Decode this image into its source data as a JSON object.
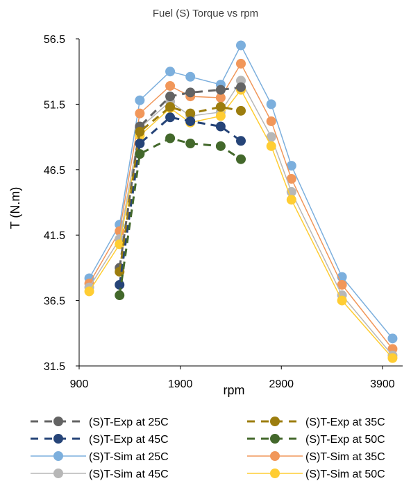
{
  "chart_data": {
    "type": "line",
    "title": "Fuel (S) Torque vs rpm",
    "xlabel": "rpm",
    "ylabel": "T (N.m)",
    "xlim": [
      900,
      4100
    ],
    "ylim": [
      31.5,
      56.5
    ],
    "xticks": [
      900,
      1900,
      2900,
      3900
    ],
    "yticks": [
      31.5,
      36.5,
      41.5,
      46.5,
      51.5,
      56.5
    ],
    "grid": false,
    "legend_position": "bottom",
    "series": [
      {
        "name": "(S)T-Exp at 25C",
        "color": "#636363",
        "style": "dashed",
        "x": [
          1300,
          1500,
          1800,
          2000,
          2300,
          2500
        ],
        "y": [
          39.0,
          49.8,
          52.1,
          52.4,
          52.6,
          52.8
        ]
      },
      {
        "name": "(S)T-Exp at 35C",
        "color": "#9C7D0E",
        "style": "dashed",
        "x": [
          1300,
          1500,
          1800,
          2000,
          2300,
          2500
        ],
        "y": [
          38.7,
          49.4,
          51.3,
          50.8,
          51.3,
          51.0
        ]
      },
      {
        "name": "(S)T-Exp at 45C",
        "color": "#264478",
        "style": "dashed",
        "x": [
          1300,
          1500,
          1800,
          2000,
          2300,
          2500
        ],
        "y": [
          37.7,
          48.5,
          50.5,
          50.2,
          49.8,
          48.7
        ]
      },
      {
        "name": "(S)T-Exp at 50C",
        "color": "#43682B",
        "style": "dashed",
        "x": [
          1300,
          1500,
          1800,
          2000,
          2300,
          2500
        ],
        "y": [
          36.9,
          47.7,
          48.9,
          48.5,
          48.3,
          47.3
        ]
      },
      {
        "name": "(S)T-Sim at 25C",
        "color": "#7CAFDD",
        "style": "solid",
        "x": [
          1000,
          1300,
          1500,
          1800,
          2000,
          2300,
          2500,
          2800,
          3000,
          3500,
          4000
        ],
        "y": [
          38.2,
          42.3,
          51.8,
          54.0,
          53.6,
          53.0,
          56.0,
          51.5,
          46.8,
          38.3,
          33.6
        ]
      },
      {
        "name": "(S)T-Sim at 35C",
        "color": "#F1975A",
        "style": "solid",
        "x": [
          1000,
          1300,
          1500,
          1800,
          2000,
          2300,
          2500,
          2800,
          3000,
          3500,
          4000
        ],
        "y": [
          37.8,
          41.8,
          50.8,
          52.9,
          52.1,
          52.0,
          54.6,
          50.2,
          45.8,
          37.7,
          32.8
        ]
      },
      {
        "name": "(S)T-Sim at 45C",
        "color": "#B7B7B7",
        "style": "solid",
        "x": [
          1000,
          1300,
          1500,
          1800,
          2000,
          2300,
          2500,
          2800,
          3000,
          3500,
          4000
        ],
        "y": [
          37.5,
          41.2,
          49.7,
          51.7,
          50.6,
          50.9,
          53.3,
          49.0,
          44.8,
          36.9,
          32.3
        ]
      },
      {
        "name": "(S)T-Sim at 50C",
        "color": "#FFCD33",
        "style": "solid",
        "x": [
          1000,
          1300,
          1500,
          1800,
          2000,
          2300,
          2500,
          2800,
          3000,
          3500,
          4000
        ],
        "y": [
          37.2,
          40.8,
          49.1,
          51.2,
          50.1,
          50.6,
          52.6,
          48.3,
          44.2,
          36.5,
          32.1
        ]
      }
    ]
  }
}
